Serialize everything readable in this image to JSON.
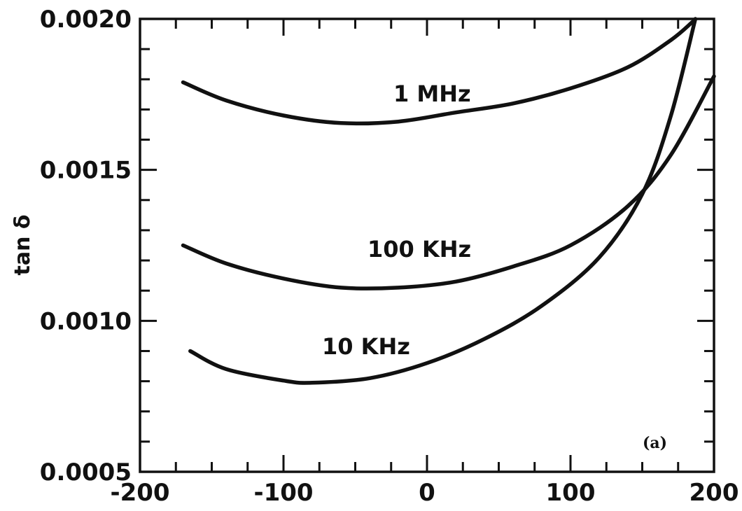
{
  "chart_data": {
    "type": "line",
    "title": "",
    "xlabel": "",
    "ylabel": "tan δ",
    "panel_label": "(a)",
    "xlim": [
      -200,
      200
    ],
    "ylim": [
      0.0005,
      0.002
    ],
    "x_ticks": [
      -200,
      -100,
      0,
      100,
      200
    ],
    "x_tick_labels": [
      "-200",
      "-100",
      "0",
      "100",
      "200"
    ],
    "y_ticks": [
      0.0005,
      0.001,
      0.0015,
      0.002
    ],
    "y_tick_labels": [
      "0.0005",
      "0.0010",
      "0.0015",
      "0.0020"
    ],
    "grid": false,
    "legend": "none (curves labeled inline)",
    "series": [
      {
        "name": "1 MHz",
        "x": [
          -170,
          -140,
          -100,
          -60,
          -20,
          20,
          60,
          100,
          140,
          170,
          185
        ],
        "y": [
          0.00179,
          0.00173,
          0.00168,
          0.001655,
          0.00166,
          0.00169,
          0.00172,
          0.00177,
          0.00184,
          0.00193,
          0.00199
        ]
      },
      {
        "name": "100 KHz",
        "x": [
          -170,
          -140,
          -100,
          -60,
          -20,
          20,
          60,
          100,
          140,
          170,
          200
        ],
        "y": [
          0.00125,
          0.00119,
          0.00114,
          0.00111,
          0.00111,
          0.00113,
          0.00118,
          0.00125,
          0.00138,
          0.00155,
          0.00181
        ]
      },
      {
        "name": "10 KHz",
        "x": [
          -165,
          -140,
          -100,
          -80,
          -40,
          0,
          40,
          80,
          120,
          150,
          170,
          187
        ],
        "y": [
          0.0009,
          0.00084,
          0.000802,
          0.000795,
          0.00081,
          0.00086,
          0.00094,
          0.00105,
          0.00121,
          0.00142,
          0.00168,
          0.002
        ]
      }
    ]
  }
}
